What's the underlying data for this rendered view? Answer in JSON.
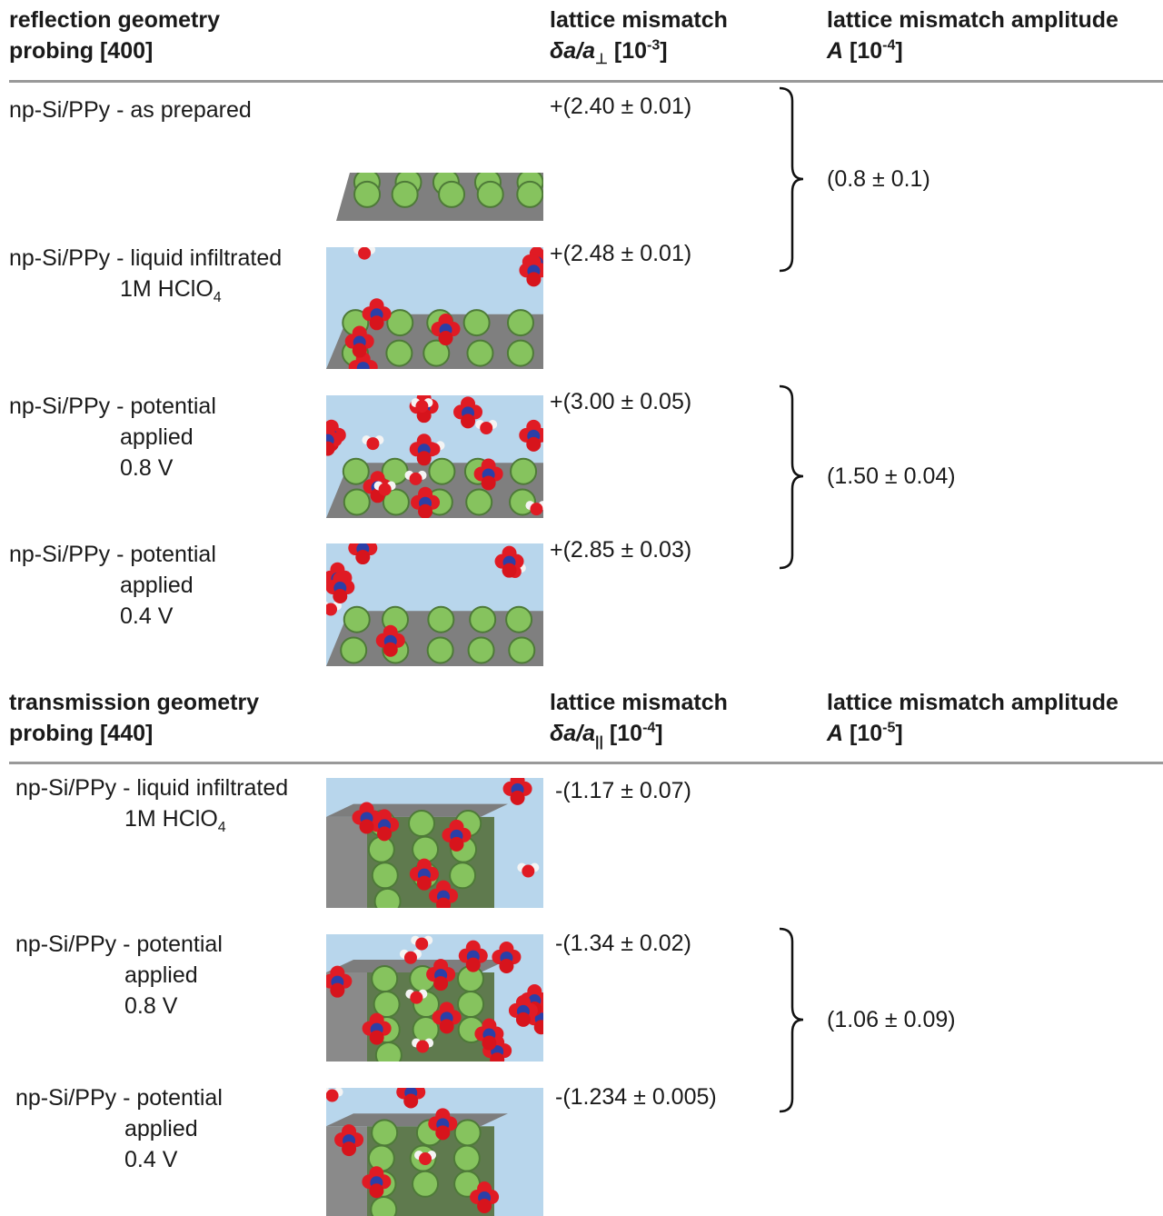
{
  "sections": [
    {
      "header": {
        "geometry": [
          "reflection geometry",
          "probing [400]"
        ],
        "mismatch": {
          "title": "lattice mismatch",
          "symbol": "δa/a",
          "subscript": "⊥",
          "unit": "[10",
          "exponent": "-3",
          "unit_end": "]"
        },
        "amplitude": {
          "title": "lattice mismatch amplitude",
          "symbol": "A",
          "unit": "[10",
          "exponent": "-4",
          "unit_end": "]"
        }
      },
      "rows": [
        {
          "label": [
            "np-Si/PPy - as prepared"
          ],
          "mismatch": "+(2.40 ± 0.01)"
        },
        {
          "label": [
            "np-Si/PPy - liquid infiltrated",
            "1M HClO"
          ],
          "label_subscript": "4",
          "mismatch": "+(2.48 ± 0.01)"
        },
        {
          "label": [
            "np-Si/PPy - potential",
            "applied",
            "0.8 V"
          ],
          "mismatch": "+(3.00 ± 0.05)"
        },
        {
          "label": [
            "np-Si/PPy - potential",
            "applied",
            "0.4 V"
          ],
          "mismatch": "+(2.85 ± 0.03)"
        }
      ],
      "amplitudes": [
        "(0.8 ± 0.1)",
        "(1.50 ± 0.04)"
      ]
    },
    {
      "header": {
        "geometry": [
          "transmission geometry",
          "probing [440]"
        ],
        "mismatch": {
          "title": "lattice mismatch",
          "symbol": "δa/a",
          "subscript": "||",
          "unit": "[10",
          "exponent": "-4",
          "unit_end": "]"
        },
        "amplitude": {
          "title": "lattice mismatch amplitude",
          "symbol": "A",
          "unit": "[10",
          "exponent": "-5",
          "unit_end": "]"
        }
      },
      "rows": [
        {
          "label": [
            "np-Si/PPy - liquid infiltrated",
            "1M HClO"
          ],
          "label_subscript": "4",
          "mismatch": "-(1.17 ± 0.07)"
        },
        {
          "label": [
            "np-Si/PPy - potential",
            "applied",
            "0.8 V"
          ],
          "mismatch": "-(1.34 ± 0.02)"
        },
        {
          "label": [
            "np-Si/PPy - potential",
            "applied",
            "0.4 V"
          ],
          "mismatch": "-(1.234 ± 0.005)"
        }
      ],
      "amplitudes": [
        "(1.06 ± 0.09)"
      ]
    }
  ]
}
